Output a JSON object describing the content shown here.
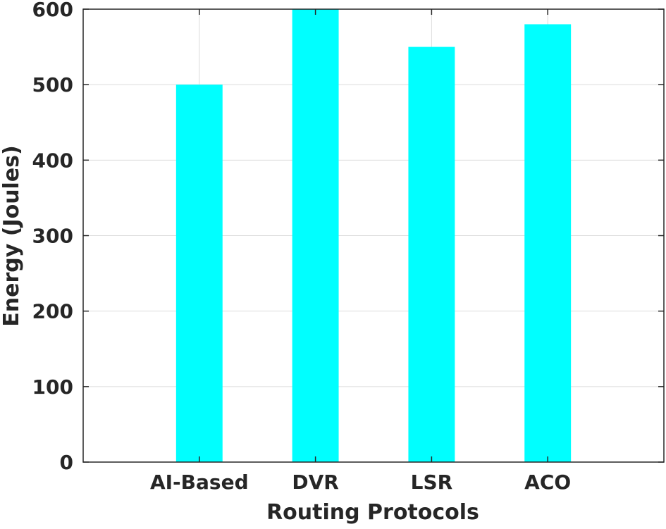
{
  "chart_data": {
    "type": "bar",
    "title": "",
    "xlabel": "Routing Protocols",
    "ylabel": "Energy (Joules)",
    "categories": [
      "AI-Based",
      "DVR",
      "LSR",
      "ACO"
    ],
    "series": [
      {
        "values": [
          500,
          600,
          550,
          580
        ]
      }
    ],
    "ylim": [
      0,
      600
    ],
    "yticks": [
      0,
      100,
      200,
      300,
      400,
      500,
      600
    ],
    "xlim": [
      0,
      5
    ],
    "grid": true,
    "legend": "none",
    "colors": {
      "bar": "#00FFFF",
      "grid": "#dcdcdc",
      "axis": "#262626",
      "text": "#262626"
    }
  }
}
